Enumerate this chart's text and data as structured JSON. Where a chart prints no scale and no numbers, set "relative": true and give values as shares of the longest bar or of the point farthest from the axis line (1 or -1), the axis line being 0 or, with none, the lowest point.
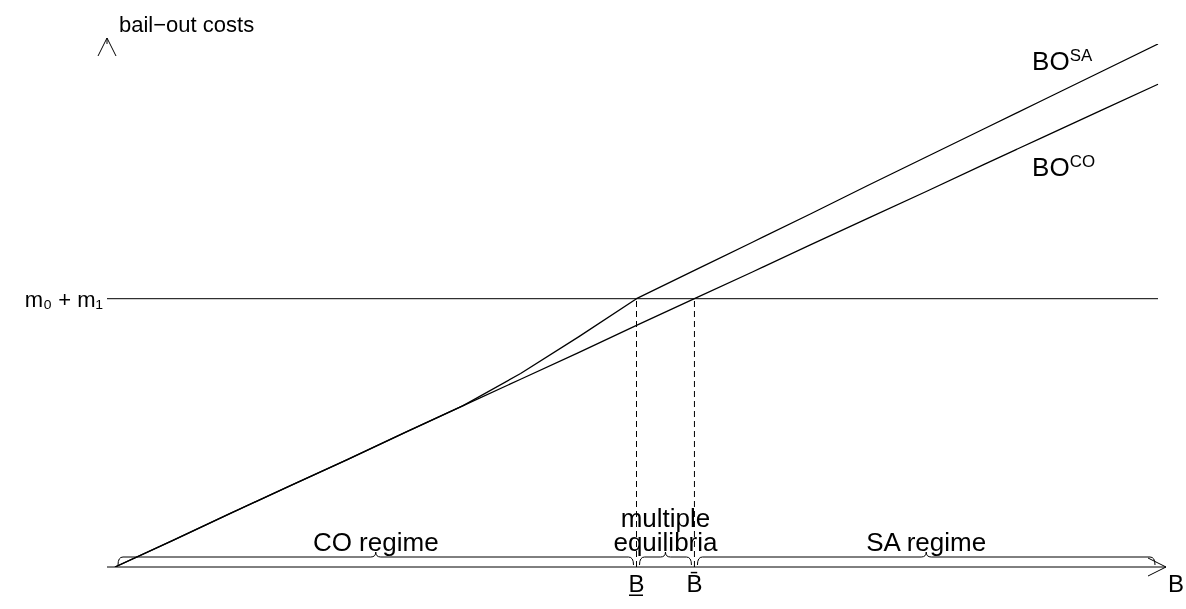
{
  "chart_data": {
    "type": "line",
    "relative": true,
    "xlabel": "B",
    "ylabel": "bail−out costs",
    "categories": [
      null,
      null,
      null,
      null,
      null,
      null,
      null,
      null,
      null,
      "B̲",
      "B̄",
      null,
      null,
      null,
      null,
      null,
      null,
      null,
      null
    ],
    "series": [
      {
        "name": "BO$^{SA}$",
        "color": "#000000",
        "values": [
          0,
          0.051,
          0.103,
          0.154,
          0.205,
          0.257,
          0.308,
          0.37,
          0.44,
          0.513,
          0.567,
          0.621,
          0.675,
          0.73,
          0.784,
          0.838,
          0.892,
          0.946,
          1
        ]
      },
      {
        "name": "BO$^{CO}$",
        "color": "#000000",
        "values": [
          0,
          0.051,
          0.103,
          0.154,
          0.205,
          0.257,
          0.308,
          0.359,
          0.41,
          0.462,
          0.513,
          0.564,
          0.616,
          0.667,
          0.718,
          0.77,
          0.821,
          0.872,
          0.923
        ]
      }
    ],
    "ref_lines": [
      {
        "axis": "y",
        "value": 0.513,
        "label": "m₀ + m₁",
        "color": "#000000",
        "line_style": "solid"
      },
      {
        "axis": "x",
        "value": "B̲",
        "color": "#000000",
        "line_style": "dashed"
      },
      {
        "axis": "x",
        "value": "B̄",
        "color": "#000000",
        "line_style": "dashed"
      }
    ],
    "annotations": [
      "CO regime",
      "multiple equilibria",
      "SA regime"
    ],
    "marker": "none",
    "line_style": "solid"
  }
}
